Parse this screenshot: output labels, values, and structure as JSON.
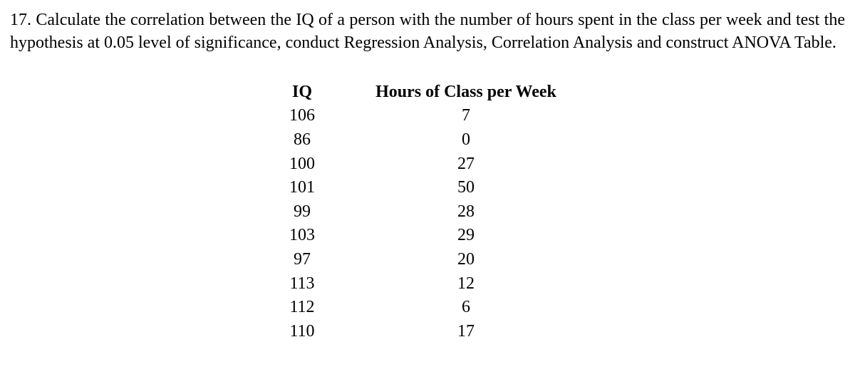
{
  "question": {
    "text": "17. Calculate the correlation between the IQ of a person with the number of hours spent in the class per week and test the hypothesis at 0.05 level of significance, conduct Regression Analysis, Correlation Analysis and construct ANOVA Table."
  },
  "table": {
    "headers": {
      "iq": "IQ",
      "hours": "Hours of Class per Week"
    },
    "rows": [
      {
        "iq": "106",
        "hours": "7"
      },
      {
        "iq": "86",
        "hours": "0"
      },
      {
        "iq": "100",
        "hours": "27"
      },
      {
        "iq": "101",
        "hours": "50"
      },
      {
        "iq": "99",
        "hours": "28"
      },
      {
        "iq": "103",
        "hours": "29"
      },
      {
        "iq": "97",
        "hours": "20"
      },
      {
        "iq": "113",
        "hours": "12"
      },
      {
        "iq": "112",
        "hours": "6"
      },
      {
        "iq": "110",
        "hours": "17"
      }
    ]
  },
  "style": {
    "font_family": "Times New Roman",
    "question_fontsize": 24,
    "table_fontsize": 24,
    "text_color": "#000000",
    "background_color": "#ffffff",
    "table_left_margin": 340,
    "col_iq_width": 140,
    "col_hours_width": 320,
    "text_align_table": "center",
    "header_fontweight": "bold"
  }
}
